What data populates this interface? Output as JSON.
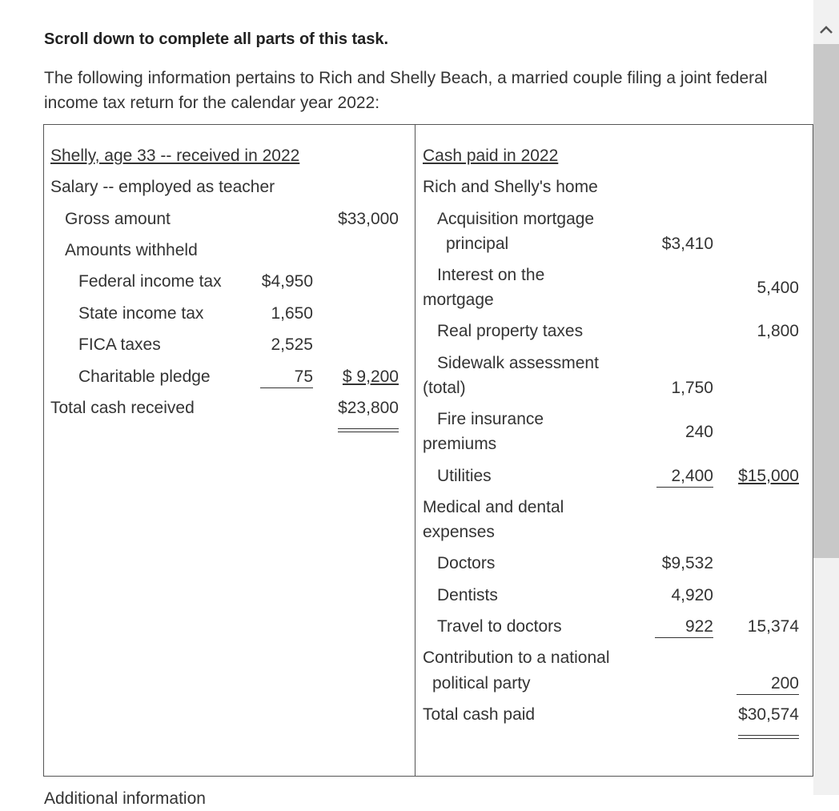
{
  "instruction": "Scroll down to complete all parts of this task.",
  "intro": "The following information pertains to Rich and Shelly Beach, a married couple filing a joint federal income tax return for the calendar year 2022:",
  "left": {
    "heading": "Shelly, age 33 -- received in 2022",
    "salary_label": "Salary -- employed as teacher",
    "gross_label": "Gross amount",
    "gross_amount": "$33,000",
    "withheld_label": "Amounts withheld",
    "withheld": [
      {
        "label": "Federal income tax",
        "amount": "$4,950"
      },
      {
        "label": "State income tax",
        "amount": "1,650"
      },
      {
        "label": "FICA taxes",
        "amount": "2,525"
      },
      {
        "label": "Charitable pledge",
        "amount": "75"
      }
    ],
    "withheld_total": "$ 9,200",
    "total_label": "Total cash received",
    "total_amount": "$23,800"
  },
  "right": {
    "heading": "Cash paid in 2022",
    "home_label": "Rich and Shelly's home",
    "mortgage_principal_line1": "Acquisition mortgage",
    "mortgage_principal_line2": "principal",
    "mortgage_principal_amount": "$3,410",
    "interest_line1": "Interest on the",
    "interest_line2": "mortgage",
    "interest_amount": "5,400",
    "property_tax_label": "Real property taxes",
    "property_tax_amount": "1,800",
    "sidewalk_line1": "Sidewalk assessment",
    "sidewalk_line2": "(total)",
    "sidewalk_amount": "1,750",
    "fire_line1": "Fire insurance",
    "fire_line2": "premiums",
    "fire_amount": "240",
    "utilities_label": "Utilities",
    "utilities_amount": "2,400",
    "home_total": "$15,000",
    "medical_line1": "Medical and dental",
    "medical_line2": "expenses",
    "doctors_label": "Doctors",
    "doctors_amount": "$9,532",
    "dentists_label": "Dentists",
    "dentists_amount": "4,920",
    "travel_label": "Travel to doctors",
    "travel_amount": "922",
    "medical_total": "15,374",
    "contribution_line1": "Contribution to a national",
    "contribution_line2": "political party",
    "contribution_amount": "200",
    "total_label": "Total cash paid",
    "total_amount": "$30,574"
  },
  "cutoff_text": "Additional information"
}
